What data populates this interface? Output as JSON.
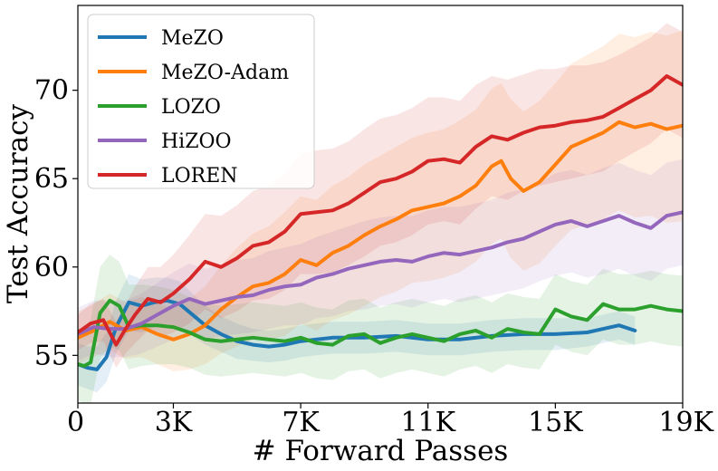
{
  "chart_data": {
    "type": "line",
    "xlabel": "# Forward Passes",
    "ylabel": "Test Accuracy",
    "xlim": [
      0,
      19000
    ],
    "ylim": [
      52.3,
      74.8
    ],
    "xticks": [
      0,
      3000,
      7000,
      11000,
      15000,
      19000
    ],
    "xtick_labels": [
      "0",
      "3K",
      "7K",
      "11K",
      "15K",
      "19K"
    ],
    "yticks": [
      55,
      60,
      65,
      70
    ],
    "ytick_labels": [
      "55",
      "60",
      "65",
      "70"
    ],
    "grid": false,
    "legend": "top-left",
    "series": [
      {
        "name": "MeZO",
        "color": "#1f77b4",
        "x": [
          0,
          300,
          600,
          900,
          1200,
          1600,
          2000,
          2400,
          2800,
          3200,
          3600,
          4000,
          4500,
          5000,
          5500,
          6000,
          6500,
          7000,
          7500,
          8000,
          9000,
          10000,
          11000,
          12000,
          13000,
          14000,
          15000,
          16000,
          16500,
          17000,
          17500
        ],
        "y": [
          54.5,
          54.3,
          54.2,
          54.9,
          56.6,
          58.0,
          57.8,
          58.0,
          58.1,
          57.9,
          57.3,
          56.7,
          56.2,
          55.8,
          55.6,
          55.5,
          55.6,
          55.8,
          55.9,
          56.0,
          56.0,
          56.1,
          55.9,
          55.9,
          56.1,
          56.2,
          56.2,
          56.3,
          56.5,
          56.7,
          56.4
        ],
        "band": [
          1.2,
          1.2,
          1.3,
          1.4,
          1.5,
          1.6,
          1.5,
          1.4,
          1.3,
          1.3,
          1.2,
          1.1,
          1.0,
          1.0,
          0.9,
          0.9,
          0.9,
          0.9,
          0.9,
          0.9,
          0.9,
          0.9,
          0.9,
          0.9,
          0.9,
          0.9,
          0.9,
          0.8,
          0.8,
          0.8,
          0.8
        ]
      },
      {
        "name": "MeZO-Adam",
        "color": "#ff7f0e",
        "x": [
          0,
          500,
          1000,
          1500,
          2000,
          2500,
          3000,
          3500,
          4000,
          4500,
          5000,
          5500,
          6000,
          6500,
          7000,
          7500,
          8000,
          8500,
          9000,
          9500,
          10000,
          10500,
          11000,
          11500,
          12000,
          12500,
          13000,
          13300,
          13600,
          14000,
          14500,
          15000,
          15500,
          16000,
          16500,
          17000,
          17500,
          18000,
          18500,
          19000
        ],
        "y": [
          56.0,
          56.4,
          56.9,
          56.4,
          56.6,
          56.2,
          55.9,
          56.2,
          56.7,
          57.6,
          58.3,
          58.9,
          59.1,
          59.6,
          60.4,
          60.1,
          60.8,
          61.2,
          61.8,
          62.3,
          62.7,
          63.2,
          63.4,
          63.6,
          64.0,
          64.6,
          65.7,
          66.0,
          65.0,
          64.3,
          64.8,
          65.8,
          66.8,
          67.2,
          67.6,
          68.2,
          67.9,
          68.1,
          67.8,
          68.0
        ],
        "band": [
          1.5,
          1.5,
          1.6,
          1.6,
          1.7,
          1.7,
          1.8,
          2.0,
          2.2,
          2.5,
          2.8,
          3.0,
          3.2,
          3.5,
          3.6,
          3.7,
          3.8,
          3.9,
          4.0,
          4.0,
          4.1,
          4.1,
          4.2,
          4.2,
          4.3,
          4.3,
          4.4,
          4.4,
          4.5,
          4.5,
          4.6,
          4.6,
          4.7,
          4.8,
          4.9,
          5.0,
          5.1,
          5.2,
          5.3,
          5.4
        ]
      },
      {
        "name": "LOZO",
        "color": "#2ca02c",
        "x": [
          0,
          200,
          400,
          700,
          1000,
          1300,
          1600,
          2000,
          2500,
          3000,
          3500,
          4000,
          4500,
          5000,
          5500,
          6000,
          6500,
          7000,
          7500,
          8000,
          8500,
          9000,
          9500,
          10000,
          10500,
          11000,
          11500,
          12000,
          12500,
          13000,
          13500,
          14000,
          14500,
          15000,
          15500,
          16000,
          16500,
          17000,
          17500,
          18000,
          18500,
          19000
        ],
        "y": [
          54.5,
          54.4,
          54.6,
          57.4,
          58.1,
          57.8,
          56.6,
          56.7,
          56.7,
          56.6,
          56.3,
          55.9,
          55.8,
          55.9,
          56.0,
          55.9,
          55.8,
          56.0,
          55.7,
          55.6,
          56.1,
          56.2,
          55.7,
          56.0,
          56.2,
          56.0,
          55.8,
          56.2,
          56.4,
          56.0,
          56.5,
          56.3,
          56.2,
          57.6,
          57.2,
          57.0,
          57.9,
          57.6,
          57.6,
          57.8,
          57.6,
          57.5
        ],
        "band": [
          2.0,
          2.2,
          2.4,
          2.6,
          2.6,
          2.5,
          2.4,
          2.3,
          2.2,
          2.1,
          2.0,
          2.0,
          2.0,
          2.0,
          2.0,
          2.0,
          2.0,
          2.0,
          2.0,
          2.0,
          2.0,
          2.0,
          2.0,
          2.0,
          2.0,
          2.0,
          2.0,
          2.0,
          2.0,
          2.0,
          2.0,
          2.0,
          2.0,
          2.0,
          2.0,
          2.0,
          2.0,
          2.0,
          2.0,
          2.0,
          2.0,
          2.0
        ]
      },
      {
        "name": "HiZOO",
        "color": "#9467bd",
        "x": [
          0,
          500,
          1000,
          1500,
          2000,
          2500,
          3000,
          3500,
          4000,
          4500,
          5000,
          5500,
          6000,
          6500,
          7000,
          7500,
          8000,
          8500,
          9000,
          9500,
          10000,
          10500,
          11000,
          11500,
          12000,
          12500,
          13000,
          13500,
          14000,
          14500,
          15000,
          15500,
          16000,
          16500,
          17000,
          17500,
          18000,
          18500,
          19000
        ],
        "y": [
          56.2,
          56.6,
          56.5,
          56.5,
          56.8,
          57.3,
          57.8,
          58.2,
          57.9,
          58.1,
          58.3,
          58.4,
          58.7,
          58.9,
          59.0,
          59.4,
          59.6,
          59.9,
          60.1,
          60.3,
          60.4,
          60.3,
          60.6,
          60.8,
          60.7,
          60.9,
          61.1,
          61.4,
          61.6,
          62.0,
          62.4,
          62.6,
          62.3,
          62.6,
          62.9,
          62.5,
          62.2,
          62.9,
          63.1
        ],
        "band": [
          1.5,
          1.5,
          1.6,
          1.6,
          1.7,
          1.8,
          1.9,
          2.0,
          2.0,
          2.0,
          2.1,
          2.1,
          2.2,
          2.2,
          2.3,
          2.3,
          2.4,
          2.4,
          2.5,
          2.5,
          2.5,
          2.6,
          2.6,
          2.6,
          2.7,
          2.7,
          2.7,
          2.8,
          2.8,
          2.8,
          2.9,
          2.9,
          2.9,
          3.0,
          3.0,
          3.0,
          3.0,
          3.0,
          3.0
        ]
      },
      {
        "name": "LOREN",
        "color": "#d62728",
        "x": [
          0,
          400,
          800,
          1200,
          1500,
          1800,
          2200,
          2600,
          3000,
          3500,
          4000,
          4500,
          5000,
          5500,
          6000,
          6500,
          7000,
          7500,
          8000,
          8500,
          9000,
          9500,
          10000,
          10500,
          11000,
          11500,
          12000,
          12500,
          13000,
          13500,
          14000,
          14500,
          15000,
          15500,
          16000,
          16500,
          17000,
          17500,
          18000,
          18500,
          19000
        ],
        "y": [
          56.3,
          56.8,
          57.0,
          55.6,
          56.5,
          57.3,
          58.2,
          58.0,
          58.5,
          59.3,
          60.3,
          60.0,
          60.5,
          61.2,
          61.4,
          62.0,
          63.0,
          63.1,
          63.2,
          63.6,
          64.2,
          64.8,
          65.0,
          65.4,
          66.0,
          66.1,
          65.9,
          66.8,
          67.4,
          67.2,
          67.6,
          67.9,
          68.0,
          68.2,
          68.3,
          68.5,
          69.0,
          69.5,
          70.0,
          70.8,
          70.3
        ],
        "band": [
          1.0,
          1.1,
          1.2,
          1.3,
          1.4,
          1.6,
          1.8,
          2.0,
          2.2,
          2.5,
          2.7,
          2.9,
          3.0,
          3.1,
          3.2,
          3.3,
          3.4,
          3.5,
          3.5,
          3.5,
          3.6,
          3.6,
          3.6,
          3.6,
          3.6,
          3.5,
          3.5,
          3.5,
          3.4,
          3.4,
          3.3,
          3.3,
          3.2,
          3.2,
          3.1,
          3.1,
          3.0,
          3.0,
          3.0,
          3.0,
          3.0
        ]
      }
    ]
  }
}
